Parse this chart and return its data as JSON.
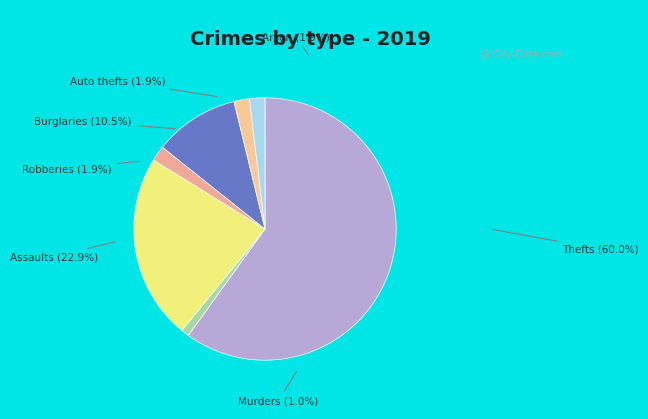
{
  "title": "Crimes by type - 2019",
  "labels": [
    "Thefts",
    "Assaults",
    "Murders",
    "Burglaries",
    "Robberies",
    "Auto thefts",
    "Arson"
  ],
  "values": [
    60.0,
    22.9,
    1.0,
    10.5,
    1.9,
    1.9,
    1.9
  ],
  "colors": [
    "#b8a8d8",
    "#f0f07a",
    "#a8d8a8",
    "#6878c8",
    "#f0a898",
    "#f8c898",
    "#a8d8f0"
  ],
  "background_top": "#00e5e5",
  "background_main": "#d8ecd8",
  "startangle": 90,
  "label_texts": [
    "Thefts (60.0%)",
    "Assaults (22.9%)",
    "Murders (1.0%)",
    "Burglaries (10.5%)",
    "Robberies (1.9%)",
    "Auto thefts (1.9%)",
    "Arson (1.9%)"
  ]
}
